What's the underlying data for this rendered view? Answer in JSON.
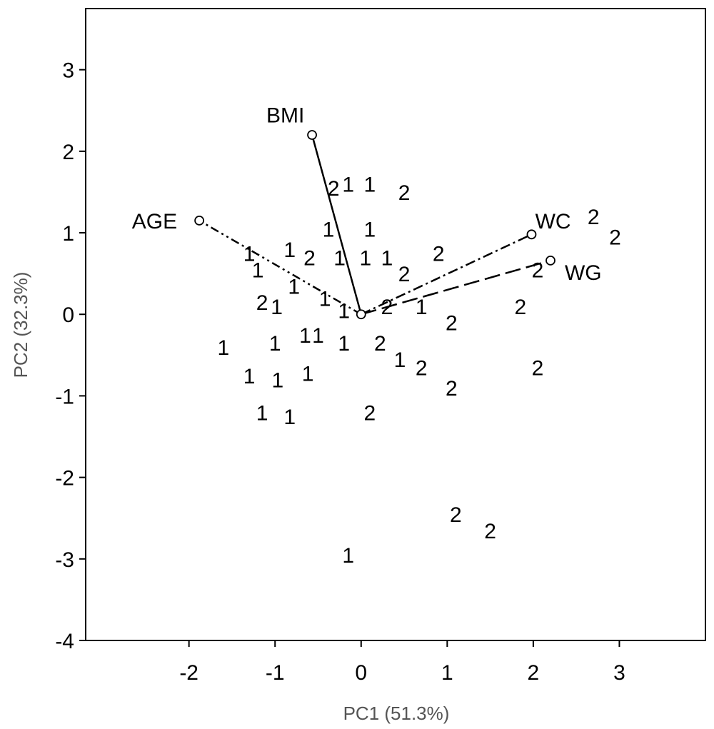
{
  "chart_data": {
    "type": "scatter",
    "title": "",
    "xlabel": "PC1 (51.3%)",
    "ylabel": "PC2 (32.3%)",
    "xlim": [
      -3.2,
      4.0
    ],
    "ylim": [
      -4.0,
      3.75
    ],
    "x_ticks": [
      -2,
      -1,
      0,
      1,
      2,
      3
    ],
    "y_ticks": [
      3,
      2,
      1,
      0,
      -1,
      -2,
      -3,
      -4
    ],
    "grid": false,
    "points": [
      {
        "label": "1",
        "x": -1.6,
        "y": -0.4
      },
      {
        "label": "1",
        "x": -1.3,
        "y": 0.75
      },
      {
        "label": "1",
        "x": -1.2,
        "y": 0.55
      },
      {
        "label": "2",
        "x": -1.15,
        "y": 0.15
      },
      {
        "label": "1",
        "x": -0.98,
        "y": 0.1
      },
      {
        "label": "1",
        "x": -1.0,
        "y": -0.35
      },
      {
        "label": "1",
        "x": -1.3,
        "y": -0.75
      },
      {
        "label": "1",
        "x": -0.97,
        "y": -0.8
      },
      {
        "label": "1",
        "x": -1.15,
        "y": -1.2
      },
      {
        "label": "1",
        "x": -0.83,
        "y": -1.25
      },
      {
        "label": "1",
        "x": -0.83,
        "y": 0.8
      },
      {
        "label": "1",
        "x": -0.78,
        "y": 0.35
      },
      {
        "label": "2",
        "x": -0.6,
        "y": 0.7
      },
      {
        "label": "1",
        "x": -0.65,
        "y": -0.25
      },
      {
        "label": "1",
        "x": -0.5,
        "y": -0.25
      },
      {
        "label": "1",
        "x": -0.62,
        "y": -0.72
      },
      {
        "label": "1",
        "x": -0.42,
        "y": 0.2
      },
      {
        "label": "1",
        "x": -0.38,
        "y": 1.05
      },
      {
        "label": "2",
        "x": -0.32,
        "y": 1.55
      },
      {
        "label": "1",
        "x": -0.15,
        "y": 1.6
      },
      {
        "label": "1",
        "x": 0.1,
        "y": 1.6
      },
      {
        "label": "1",
        "x": 0.1,
        "y": 1.05
      },
      {
        "label": "1",
        "x": -0.25,
        "y": 0.7
      },
      {
        "label": "1",
        "x": 0.05,
        "y": 0.7
      },
      {
        "label": "1",
        "x": 0.3,
        "y": 0.7
      },
      {
        "label": "2",
        "x": 0.5,
        "y": 1.5
      },
      {
        "label": "2",
        "x": 0.5,
        "y": 0.5
      },
      {
        "label": "2",
        "x": 0.9,
        "y": 0.75
      },
      {
        "label": "1",
        "x": -0.2,
        "y": 0.05
      },
      {
        "label": "2",
        "x": 0.3,
        "y": 0.1
      },
      {
        "label": "1",
        "x": 0.7,
        "y": 0.1
      },
      {
        "label": "1",
        "x": -0.2,
        "y": -0.35
      },
      {
        "label": "2",
        "x": 0.22,
        "y": -0.35
      },
      {
        "label": "1",
        "x": 0.45,
        "y": -0.55
      },
      {
        "label": "2",
        "x": 0.7,
        "y": -0.65
      },
      {
        "label": "2",
        "x": 1.05,
        "y": -0.9
      },
      {
        "label": "2",
        "x": 1.05,
        "y": -0.1
      },
      {
        "label": "2",
        "x": 0.1,
        "y": -1.2
      },
      {
        "label": "2",
        "x": 1.85,
        "y": 0.1
      },
      {
        "label": "2",
        "x": 2.05,
        "y": -0.65
      },
      {
        "label": "2",
        "x": 2.05,
        "y": 0.55
      },
      {
        "label": "2",
        "x": 2.7,
        "y": 1.2
      },
      {
        "label": "2",
        "x": 2.95,
        "y": 0.95
      },
      {
        "label": "2",
        "x": 1.1,
        "y": -2.45
      },
      {
        "label": "2",
        "x": 1.5,
        "y": -2.65
      },
      {
        "label": "1",
        "x": -0.15,
        "y": -2.95
      }
    ],
    "vectors": [
      {
        "name": "BMI",
        "x": -0.57,
        "y": 2.2,
        "label_x": -0.88,
        "label_y": 2.45,
        "style": "solid"
      },
      {
        "name": "AGE",
        "x": -1.88,
        "y": 1.15,
        "label_x": -2.4,
        "label_y": 1.15,
        "style": "dashdotdot"
      },
      {
        "name": "WC",
        "x": 1.98,
        "y": 0.98,
        "label_x": 2.23,
        "label_y": 1.15,
        "style": "dashdot"
      },
      {
        "name": "WG",
        "x": 2.2,
        "y": 0.66,
        "label_x": 2.58,
        "label_y": 0.52,
        "style": "dashed"
      }
    ]
  }
}
